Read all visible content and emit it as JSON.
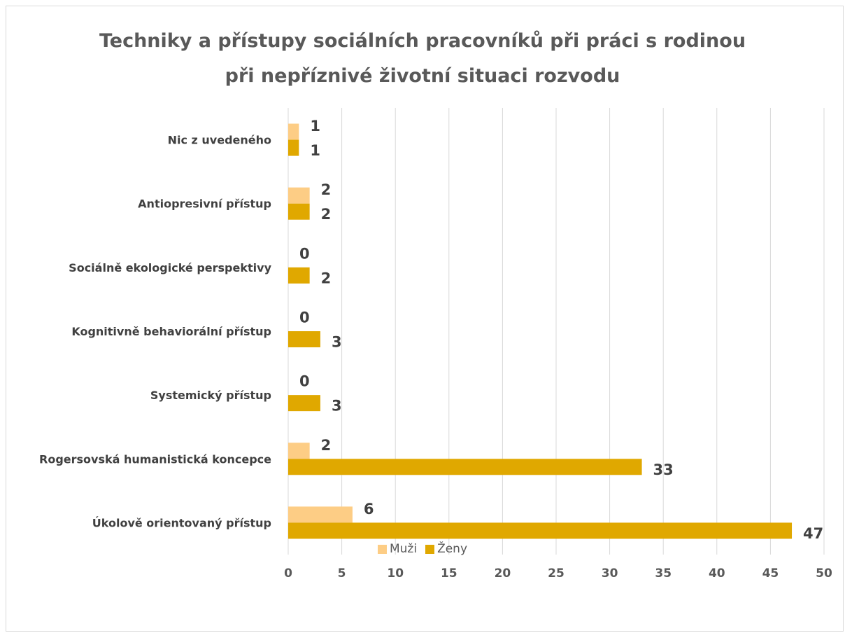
{
  "chart_data": {
    "type": "bar",
    "orientation": "horizontal",
    "title_lines": [
      "Techniky a přístupy sociálních pracovníků při práci s rodinou",
      "při nepříznivé životní situaci rozvodu"
    ],
    "categories": [
      "Nic z uvedeného",
      "Antiopresivní přístup",
      "Sociálně ekologické perspektivy",
      "Kognitivně behaviorální přístup",
      "Systemický přístup",
      "Rogersovská humanistická koncepce",
      "Úkolově orientovaný přístup"
    ],
    "series": [
      {
        "name": "Muži",
        "color": "#fdcd85",
        "values": [
          1,
          2,
          0,
          0,
          0,
          2,
          6
        ]
      },
      {
        "name": "Ženy",
        "color": "#e0a800",
        "values": [
          1,
          2,
          2,
          3,
          3,
          33,
          47
        ]
      }
    ],
    "xlim": [
      0,
      50
    ],
    "xticks": [
      0,
      5,
      10,
      15,
      20,
      25,
      30,
      35,
      40,
      45,
      50
    ],
    "grid": "vertical",
    "legend_position": "bottom",
    "data_labels": true
  }
}
